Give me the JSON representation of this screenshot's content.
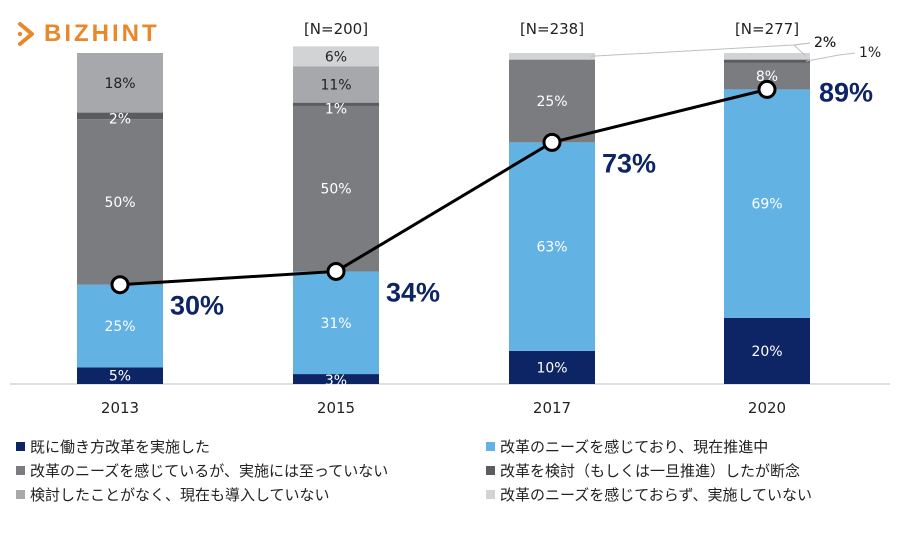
{
  "brand": {
    "name": "BIZHINT",
    "logo": "bizhint-arrow-logo-icon",
    "color": "#e8882a"
  },
  "chart_data": {
    "type": "bar",
    "stacked": true,
    "categories": [
      "2013",
      "2015",
      "2017",
      "2020"
    ],
    "n_labels": [
      "",
      "[N=200]",
      "[N=238]",
      "[N=277]"
    ],
    "series": [
      {
        "name": "既に働き方改革を実施した",
        "color": "#0d2465",
        "values": [
          5,
          3,
          10,
          20
        ],
        "labels": [
          "5%",
          "3%",
          "10%",
          "20%"
        ]
      },
      {
        "name": "改革のニーズを感じており、現在推進中",
        "color": "#62b2e4",
        "values": [
          25,
          31,
          63,
          69
        ],
        "labels": [
          "25%",
          "31%",
          "63%",
          "69%"
        ]
      },
      {
        "name": "改革のニーズを感じているが、実施には至っていない",
        "color": "#7a7c80",
        "values": [
          50,
          50,
          25,
          8
        ],
        "labels": [
          "50%",
          "50%",
          "25%",
          "8%"
        ]
      },
      {
        "name": "改革を検討（もしくは一旦推進）したが断念",
        "color": "#5a5c60",
        "values": [
          2,
          1,
          0,
          1
        ],
        "labels": [
          "2%",
          "1%",
          "",
          "1%"
        ]
      },
      {
        "name": "検討したことがなく、現在も導入していない",
        "color": "#a6a8ac",
        "values": [
          18,
          11,
          0,
          0
        ],
        "labels": [
          "18%",
          "11%",
          "",
          ""
        ]
      },
      {
        "name": "改革のニーズを感じておらず、実施していない",
        "color": "#d2d3d5",
        "values": [
          0,
          6,
          2,
          2
        ],
        "labels": [
          "",
          "6%",
          "2%",
          "2%"
        ]
      }
    ],
    "callouts": [
      {
        "category": "2017",
        "series": 5,
        "label": "2%"
      },
      {
        "category": "2020",
        "series": 5,
        "label": "2%"
      },
      {
        "category": "2020",
        "series": 3,
        "label": "1%"
      }
    ],
    "line": {
      "name": "total",
      "values": [
        30,
        34,
        73,
        89
      ],
      "labels": [
        "30%",
        "34%",
        "73%",
        "89%"
      ],
      "label_color": "#0d2465"
    },
    "ylim": [
      0,
      100
    ],
    "title": "",
    "xlabel": "",
    "ylabel": ""
  }
}
